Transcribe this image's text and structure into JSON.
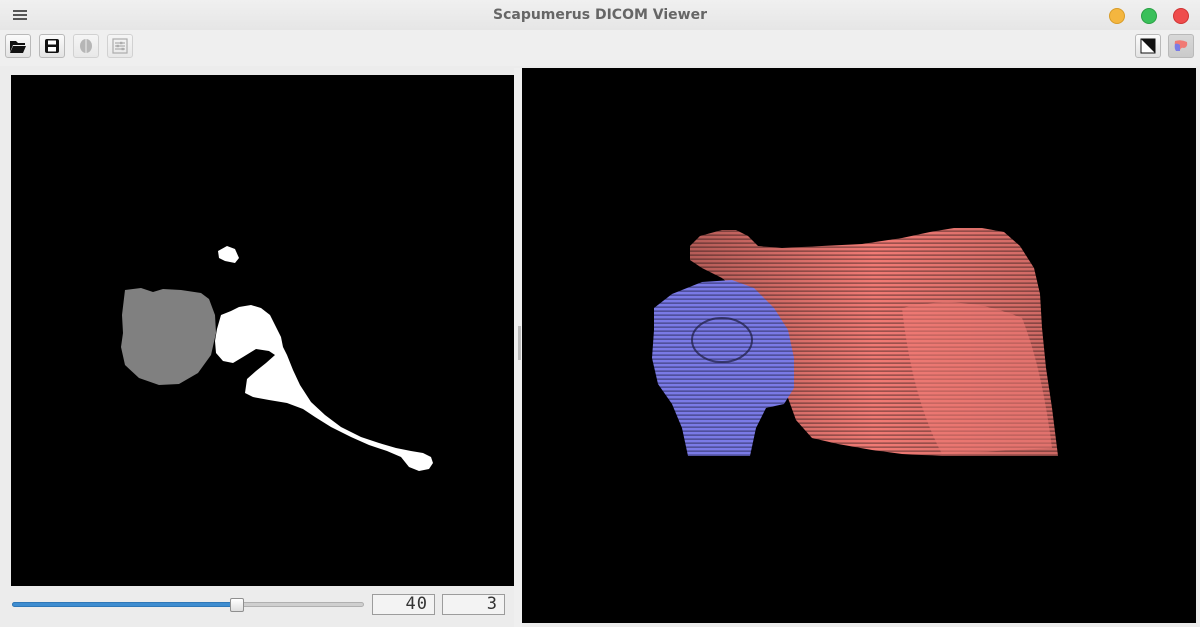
{
  "window": {
    "title": "Scapumerus DICOM Viewer"
  },
  "toolbar": {
    "open_icon": "folder-open-icon",
    "save_icon": "save-icon",
    "segment_icon": "segment-icon",
    "settings_icon": "settings-panel-icon",
    "contrast_icon": "contrast-icon",
    "render3d_icon": "3d-render-icon"
  },
  "slice_panel": {
    "slice_value": "40",
    "label_value": "3",
    "slider_fraction": 0.64
  },
  "colors": {
    "humerus": "#7a7ae6",
    "scapula": "#f07a74",
    "accent": "#3f8dd0"
  }
}
